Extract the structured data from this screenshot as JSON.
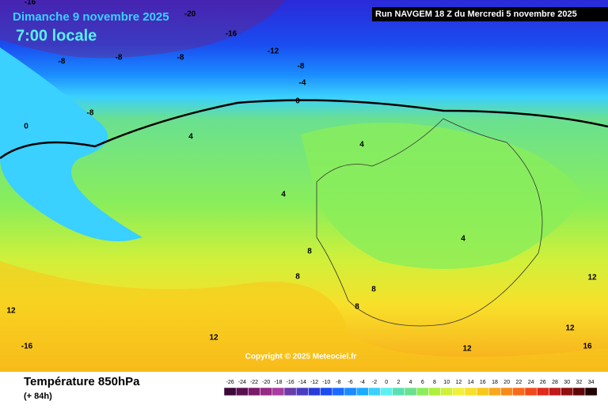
{
  "header": {
    "date": "Dimanche 9 novembre 2025",
    "time": "7:00 locale",
    "run": "Run NAVGEM 18 Z du Mercredi 5 novembre 2025"
  },
  "map": {
    "contour_labels": [
      "-16",
      "-20",
      "-16",
      "-12",
      "-8",
      "-8",
      "-8",
      "-8",
      "-4",
      "0",
      "-8",
      "0",
      "4",
      "4",
      "4",
      "4",
      "8",
      "8",
      "8",
      "8",
      "12",
      "12",
      "12",
      "12",
      "12",
      "-16",
      "16"
    ],
    "copyright": "Copyright © 2025 Meteociel.fr"
  },
  "footer": {
    "title": "Température 850hPa",
    "lead": "(+ 84h)"
  },
  "legend": {
    "ticks": [
      -26,
      -24,
      -22,
      -20,
      -18,
      -16,
      -14,
      -12,
      -10,
      -8,
      -6,
      -4,
      -2,
      0,
      2,
      4,
      6,
      8,
      10,
      12,
      14,
      16,
      18,
      20,
      22,
      24,
      26,
      28,
      30,
      32,
      34
    ],
    "colors": [
      "#3a0a3a",
      "#5a1050",
      "#7a1a6a",
      "#962a86",
      "#a83ca0",
      "#6a3ca8",
      "#4a3cc0",
      "#2a3cd8",
      "#1a4cf0",
      "#1a6cff",
      "#1a8cff",
      "#1aacff",
      "#3ad0ff",
      "#5af0f0",
      "#5ae0b0",
      "#6ae090",
      "#8aee5a",
      "#aef03a",
      "#d0f03a",
      "#f0f03a",
      "#f8e02a",
      "#f8c81a",
      "#f8a81a",
      "#f88a1a",
      "#f86a1a",
      "#f04a1a",
      "#e02a1a",
      "#c01a1a",
      "#901010",
      "#600808",
      "#200000"
    ]
  }
}
